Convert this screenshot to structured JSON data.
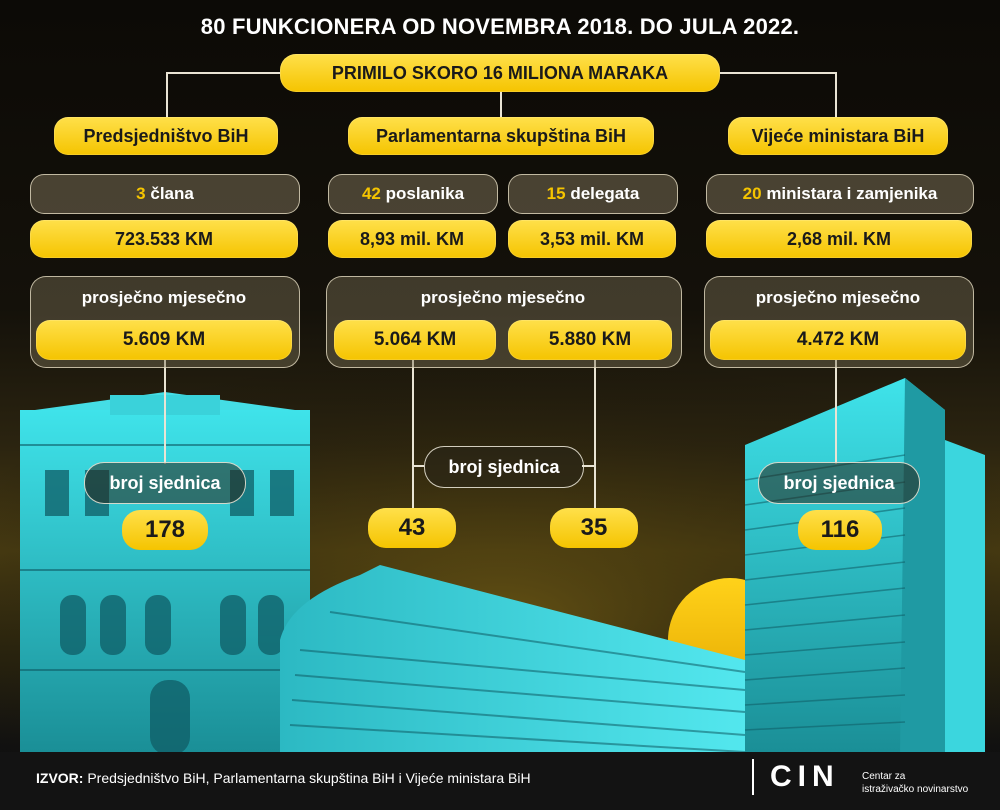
{
  "title": "80 FUNKCIONERA OD NOVEMBRA 2018. DO JULA 2022.",
  "subtitle": "PRIMILO SKORO 16 MILIONA MARAKA",
  "institutions": {
    "presidency": {
      "name": "Predsjedništvo BiH",
      "members_count": "3",
      "members_label": "člana",
      "total": "723.533 KM",
      "avg_label": "prosječno mjesečno",
      "avg": "5.609 KM",
      "sessions_label": "broj sjednica",
      "sessions": "178"
    },
    "parliament": {
      "name": "Parlamentarna skupština BiH",
      "reps_count": "42",
      "reps_label": "poslanika",
      "reps_total": "8,93 mil. KM",
      "reps_avg": "5.064 KM",
      "reps_sessions": "43",
      "delegates_count": "15",
      "delegates_label": "delegata",
      "delegates_total": "3,53 mil. KM",
      "delegates_avg": "5.880 KM",
      "delegates_sessions": "35",
      "avg_label": "prosječno mjesečno",
      "sessions_label": "broj sjednica"
    },
    "council": {
      "name": "Vijeće ministara BiH",
      "members_count": "20",
      "members_label": "ministara i zamjenika",
      "total": "2,68 mil. KM",
      "avg_label": "prosječno mjesečno",
      "avg": "4.472 KM",
      "sessions_label": "broj sjednica",
      "sessions": "116"
    }
  },
  "footer": {
    "source_label": "IZVOR:",
    "source_text": "Predsjedništvo BiH, Parlamentarna skupština BiH i Vijeće ministara BiH",
    "logo": "CIN",
    "logo_sub_1": "Centar za",
    "logo_sub_2": "istraživačko novinarstvo"
  },
  "colors": {
    "accent": "#f5c400",
    "building_cyan": "#2fc6cf",
    "footer": "#131313"
  },
  "icons": [
    "presidency-building",
    "parliament-building",
    "council-tower",
    "sun"
  ]
}
